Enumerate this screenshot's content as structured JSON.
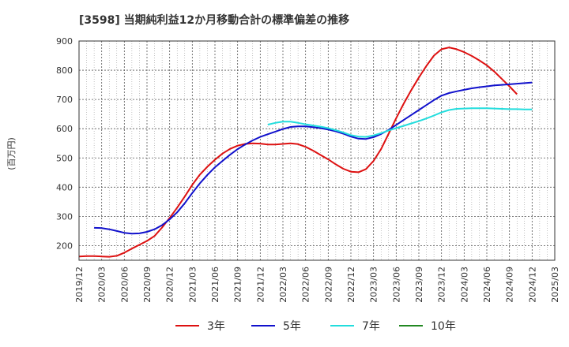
{
  "chart_data": {
    "type": "line",
    "title": "[3598]  当期純利益12か月移動合計の標準偏差の推移",
    "ylabel": "(百万円)",
    "xlabel": "",
    "ylim": [
      150,
      900
    ],
    "yticks": [
      200,
      300,
      400,
      500,
      600,
      700,
      800,
      900
    ],
    "xlim": [
      "2019-12",
      "2025-03"
    ],
    "xticks": [
      "2019/12",
      "2020/03",
      "2020/06",
      "2020/09",
      "2020/12",
      "2021/03",
      "2021/06",
      "2021/09",
      "2021/12",
      "2022/03",
      "2022/06",
      "2022/09",
      "2022/12",
      "2023/03",
      "2023/06",
      "2023/09",
      "2023/12",
      "2024/03",
      "2024/06",
      "2024/09",
      "2024/12",
      "2025/03"
    ],
    "grid": true,
    "legend_position": "bottom",
    "series": [
      {
        "name": "3年",
        "color": "#dd1111",
        "points": [
          [
            "2019-12",
            163
          ],
          [
            "2020-01",
            164
          ],
          [
            "2020-02",
            164
          ],
          [
            "2020-03",
            163
          ],
          [
            "2020-04",
            162
          ],
          [
            "2020-05",
            165
          ],
          [
            "2020-06",
            176
          ],
          [
            "2020-07",
            190
          ],
          [
            "2020-08",
            203
          ],
          [
            "2020-09",
            216
          ],
          [
            "2020-10",
            233
          ],
          [
            "2020-11",
            262
          ],
          [
            "2020-12",
            295
          ],
          [
            "2021-01",
            330
          ],
          [
            "2021-02",
            368
          ],
          [
            "2021-03",
            408
          ],
          [
            "2021-04",
            443
          ],
          [
            "2021-05",
            470
          ],
          [
            "2021-06",
            494
          ],
          [
            "2021-07",
            515
          ],
          [
            "2021-08",
            531
          ],
          [
            "2021-09",
            542
          ],
          [
            "2021-10",
            548
          ],
          [
            "2021-11",
            550
          ],
          [
            "2021-12",
            549
          ],
          [
            "2022-01",
            546
          ],
          [
            "2022-02",
            546
          ],
          [
            "2022-03",
            548
          ],
          [
            "2022-04",
            550
          ],
          [
            "2022-05",
            547
          ],
          [
            "2022-06",
            538
          ],
          [
            "2022-07",
            525
          ],
          [
            "2022-08",
            510
          ],
          [
            "2022-09",
            495
          ],
          [
            "2022-10",
            478
          ],
          [
            "2022-11",
            463
          ],
          [
            "2022-12",
            453
          ],
          [
            "2023-01",
            451
          ],
          [
            "2023-02",
            462
          ],
          [
            "2023-03",
            490
          ],
          [
            "2023-04",
            530
          ],
          [
            "2023-05",
            583
          ],
          [
            "2023-06",
            636
          ],
          [
            "2023-07",
            686
          ],
          [
            "2023-08",
            732
          ],
          [
            "2023-09",
            775
          ],
          [
            "2023-10",
            815
          ],
          [
            "2023-11",
            850
          ],
          [
            "2023-12",
            872
          ],
          [
            "2024-01",
            878
          ],
          [
            "2024-02",
            872
          ],
          [
            "2024-03",
            862
          ],
          [
            "2024-04",
            849
          ],
          [
            "2024-05",
            834
          ],
          [
            "2024-06",
            817
          ],
          [
            "2024-07",
            795
          ],
          [
            "2024-08",
            770
          ],
          [
            "2024-09",
            745
          ],
          [
            "2024-10",
            718
          ]
        ]
      },
      {
        "name": "5年",
        "color": "#1111cc",
        "points": [
          [
            "2020-02",
            261
          ],
          [
            "2020-03",
            260
          ],
          [
            "2020-04",
            256
          ],
          [
            "2020-05",
            250
          ],
          [
            "2020-06",
            244
          ],
          [
            "2020-07",
            241
          ],
          [
            "2020-08",
            242
          ],
          [
            "2020-09",
            247
          ],
          [
            "2020-10",
            256
          ],
          [
            "2020-11",
            270
          ],
          [
            "2020-12",
            290
          ],
          [
            "2021-01",
            314
          ],
          [
            "2021-02",
            345
          ],
          [
            "2021-03",
            380
          ],
          [
            "2021-04",
            413
          ],
          [
            "2021-05",
            442
          ],
          [
            "2021-06",
            468
          ],
          [
            "2021-07",
            490
          ],
          [
            "2021-08",
            511
          ],
          [
            "2021-09",
            530
          ],
          [
            "2021-10",
            546
          ],
          [
            "2021-11",
            560
          ],
          [
            "2021-12",
            572
          ],
          [
            "2022-01",
            581
          ],
          [
            "2022-02",
            590
          ],
          [
            "2022-03",
            599
          ],
          [
            "2022-04",
            606
          ],
          [
            "2022-05",
            608
          ],
          [
            "2022-06",
            608
          ],
          [
            "2022-07",
            605
          ],
          [
            "2022-08",
            602
          ],
          [
            "2022-09",
            597
          ],
          [
            "2022-10",
            591
          ],
          [
            "2022-11",
            583
          ],
          [
            "2022-12",
            573
          ],
          [
            "2023-01",
            566
          ],
          [
            "2023-02",
            565
          ],
          [
            "2023-03",
            571
          ],
          [
            "2023-04",
            582
          ],
          [
            "2023-05",
            596
          ],
          [
            "2023-06",
            613
          ],
          [
            "2023-07",
            630
          ],
          [
            "2023-08",
            647
          ],
          [
            "2023-09",
            664
          ],
          [
            "2023-10",
            681
          ],
          [
            "2023-11",
            698
          ],
          [
            "2023-12",
            713
          ],
          [
            "2024-01",
            722
          ],
          [
            "2024-02",
            728
          ],
          [
            "2024-03",
            733
          ],
          [
            "2024-04",
            738
          ],
          [
            "2024-05",
            742
          ],
          [
            "2024-06",
            745
          ],
          [
            "2024-07",
            748
          ],
          [
            "2024-08",
            750
          ],
          [
            "2024-09",
            752
          ],
          [
            "2024-10",
            754
          ],
          [
            "2024-11",
            756
          ],
          [
            "2024-12",
            758
          ]
        ]
      },
      {
        "name": "7年",
        "color": "#22dddd",
        "points": [
          [
            "2022-01",
            614
          ],
          [
            "2022-02",
            620
          ],
          [
            "2022-03",
            624
          ],
          [
            "2022-04",
            624
          ],
          [
            "2022-05",
            620
          ],
          [
            "2022-06",
            615
          ],
          [
            "2022-07",
            611
          ],
          [
            "2022-08",
            607
          ],
          [
            "2022-09",
            602
          ],
          [
            "2022-10",
            595
          ],
          [
            "2022-11",
            587
          ],
          [
            "2022-12",
            578
          ],
          [
            "2023-01",
            573
          ],
          [
            "2023-02",
            572
          ],
          [
            "2023-03",
            577
          ],
          [
            "2023-04",
            585
          ],
          [
            "2023-05",
            594
          ],
          [
            "2023-06",
            602
          ],
          [
            "2023-07",
            610
          ],
          [
            "2023-08",
            618
          ],
          [
            "2023-09",
            626
          ],
          [
            "2023-10",
            635
          ],
          [
            "2023-11",
            645
          ],
          [
            "2023-12",
            656
          ],
          [
            "2024-01",
            664
          ],
          [
            "2024-02",
            668
          ],
          [
            "2024-03",
            669
          ],
          [
            "2024-04",
            670
          ],
          [
            "2024-05",
            670
          ],
          [
            "2024-06",
            670
          ],
          [
            "2024-07",
            669
          ],
          [
            "2024-08",
            668
          ],
          [
            "2024-09",
            667
          ],
          [
            "2024-10",
            667
          ],
          [
            "2024-11",
            666
          ],
          [
            "2024-12",
            666
          ]
        ]
      },
      {
        "name": "10年",
        "color": "#228822",
        "points": []
      }
    ]
  }
}
